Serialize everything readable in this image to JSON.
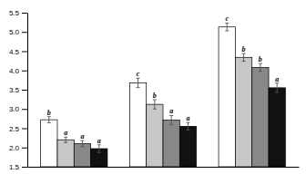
{
  "chart_data": {
    "type": "bar",
    "categories": [
      null,
      null,
      null
    ],
    "series": [
      {
        "color": "white",
        "values": [
          2.72,
          3.68,
          5.13
        ],
        "errors": [
          0.08,
          0.12,
          0.1
        ],
        "letters": [
          "b",
          "c",
          "c"
        ]
      },
      {
        "color": "#c8c8c8",
        "values": [
          2.2,
          3.12,
          4.34
        ],
        "errors": [
          0.07,
          0.12,
          0.1
        ],
        "letters": [
          "a",
          "b",
          "b"
        ]
      },
      {
        "color": "#888888",
        "values": [
          2.1,
          2.71,
          4.08
        ],
        "errors": [
          0.08,
          0.12,
          0.1
        ],
        "letters": [
          "a",
          "a",
          "b"
        ]
      },
      {
        "color": "#111111",
        "values": [
          1.97,
          2.55,
          3.55
        ],
        "errors": [
          0.1,
          0.1,
          0.12
        ],
        "letters": [
          "a",
          "a",
          "a"
        ]
      }
    ],
    "ylim": [
      1.5,
      5.5
    ],
    "yticks": [
      1.5,
      {
        "value": 2.0,
        "label": "2.0"
      },
      2.5,
      {
        "value": 3.0,
        "label": "3.0"
      },
      3.5,
      {
        "value": 4.0,
        "label": "4.0"
      },
      4.5,
      {
        "value": 5.0,
        "label": "5.0"
      },
      5.5
    ],
    "grid": false,
    "tick_labels": "y"
  }
}
